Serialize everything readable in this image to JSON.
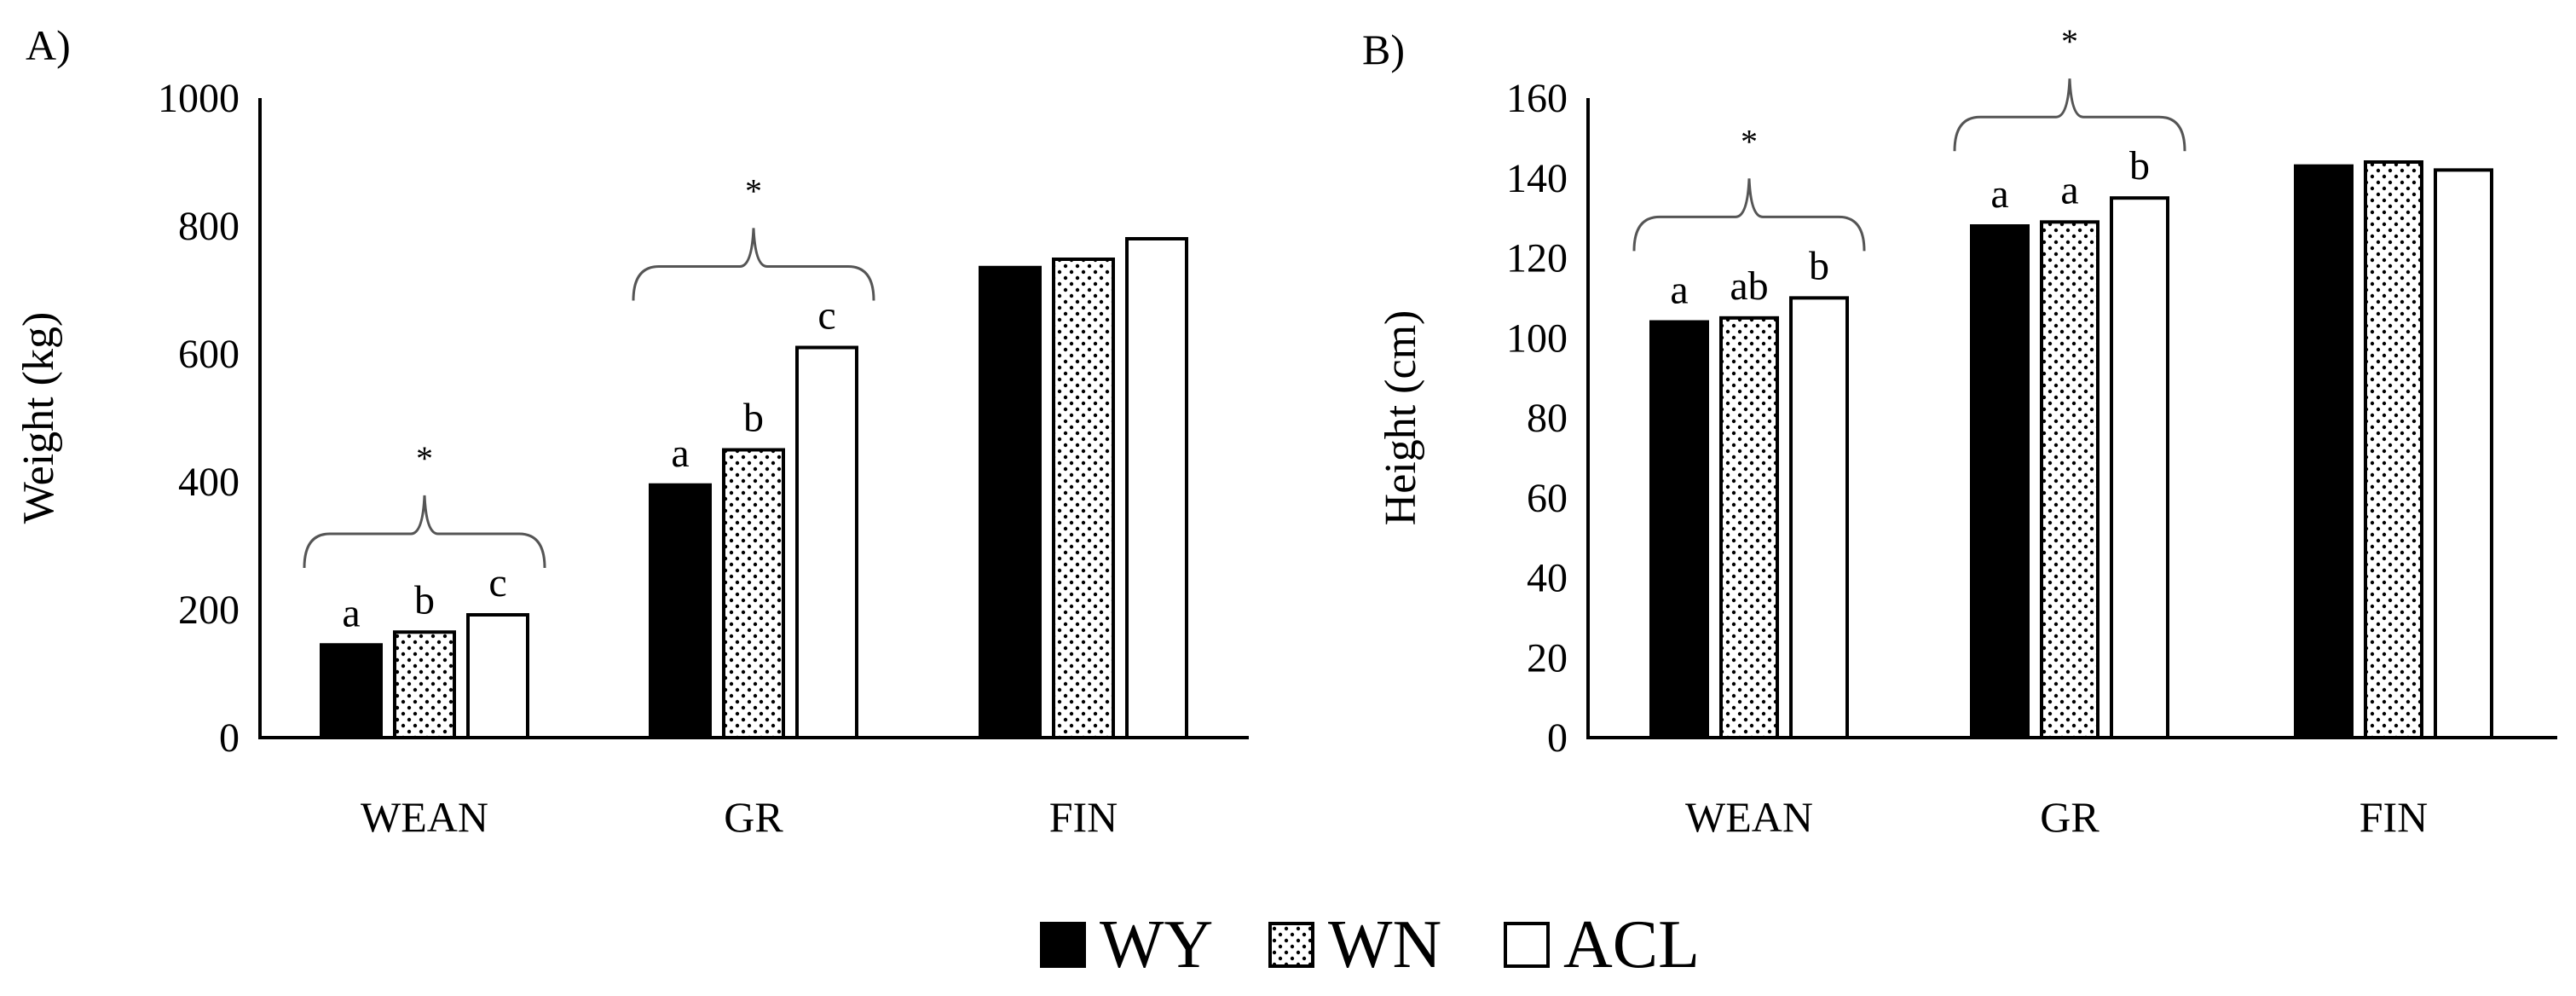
{
  "legend": [
    {
      "name": "WY",
      "fill": "solid",
      "color": "#000000"
    },
    {
      "name": "WN",
      "fill": "dotted",
      "color": "#000000"
    },
    {
      "name": "ACL",
      "fill": "empty",
      "color": "#000000"
    }
  ],
  "chart_data": [
    {
      "type": "bar",
      "panel_label": "A)",
      "title": "",
      "xlabel": "",
      "ylabel": "Weight (kg)",
      "ylim": [
        0,
        1000
      ],
      "yticks": [
        "0",
        "200",
        "400",
        "600",
        "800",
        "1000"
      ],
      "grid": false,
      "categories": [
        "WEAN",
        "GR",
        "FIN"
      ],
      "series": [
        {
          "name": "WY",
          "values": [
            145,
            395,
            735
          ]
        },
        {
          "name": "WN",
          "values": [
            165,
            450,
            748
          ]
        },
        {
          "name": "ACL",
          "values": [
            192,
            610,
            780
          ]
        }
      ],
      "letters": [
        [
          "a",
          "b",
          "c"
        ],
        [
          "a",
          "b",
          "c"
        ],
        [
          "",
          "",
          ""
        ]
      ],
      "significance": [
        "*",
        "*",
        ""
      ]
    },
    {
      "type": "bar",
      "panel_label": "B)",
      "title": "",
      "xlabel": "",
      "ylabel": "Height (cm)",
      "ylim": [
        0,
        160
      ],
      "yticks": [
        "0",
        "20",
        "40",
        "60",
        "80",
        "100",
        "120",
        "140",
        "160"
      ],
      "grid": false,
      "categories": [
        "WEAN",
        "GR",
        "FIN"
      ],
      "series": [
        {
          "name": "WY",
          "values": [
            104,
            128,
            143
          ]
        },
        {
          "name": "WN",
          "values": [
            105,
            129,
            144
          ]
        },
        {
          "name": "ACL",
          "values": [
            110,
            135,
            142
          ]
        }
      ],
      "letters": [
        [
          "a",
          "ab",
          "b"
        ],
        [
          "a",
          "a",
          "b"
        ],
        [
          "",
          "",
          ""
        ]
      ],
      "significance": [
        "*",
        "*",
        ""
      ]
    }
  ]
}
